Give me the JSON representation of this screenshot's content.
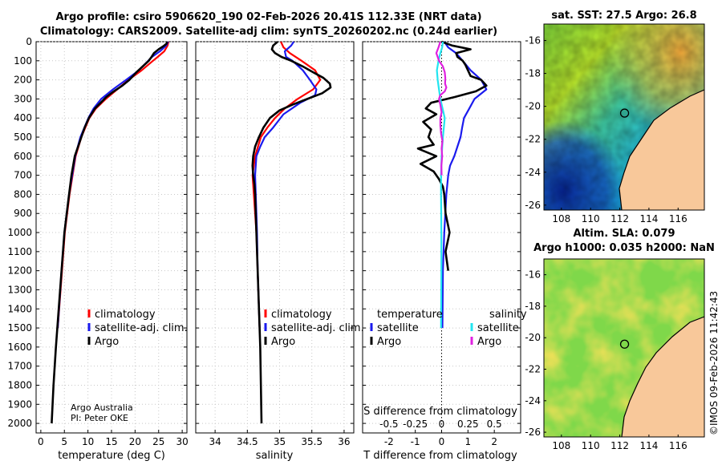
{
  "header": {
    "title_line1": "Argo profile: csiro 5906620_190 02-Feb-2026 20.41S 112.33E (NRT data)",
    "title_line2": "Climatology: CARS2009. Satellite-adj clim: synTS_20260202.nc (0.24d earlier)"
  },
  "credit": {
    "line1": "Argo Australia",
    "line2": "PI: Peter OKE"
  },
  "footer_stamp": "©IMOS 09-Feb-2026 11:42:43",
  "colors": {
    "red": "#ff0000",
    "blue": "#1a1aee",
    "black": "#000000",
    "cyan": "#22e5f0",
    "magenta": "#e020e0"
  },
  "map_sst": {
    "title": "sat. SST: 27.5 Argo: 26.8",
    "lat_ticks": [
      "-16",
      "-18",
      "-20",
      "-22",
      "-24",
      "-26"
    ],
    "lon_ticks": [
      "108",
      "110",
      "112",
      "114",
      "116"
    ],
    "lat_range": [
      -26.3,
      -15.0
    ],
    "lon_range": [
      106.8,
      117.8
    ],
    "float_position": {
      "lat": -20.41,
      "lon": 112.33
    }
  },
  "map_sla": {
    "title_line1": "Altim. SLA: 0.079",
    "title_line2": "Argo h1000: 0.035 h2000: NaN",
    "lat_ticks": [
      "-16",
      "-18",
      "-20",
      "-22",
      "-24",
      "-26"
    ],
    "lon_ticks": [
      "108",
      "110",
      "112",
      "114",
      "116"
    ],
    "lat_range": [
      -26.3,
      -15.0
    ],
    "lon_range": [
      106.8,
      117.8
    ],
    "float_position": {
      "lat": -20.41,
      "lon": 112.33
    }
  },
  "chart_data": [
    {
      "type": "line",
      "xlabel": "temperature (deg C)",
      "ylabel": "",
      "xlim": [
        -1,
        31
      ],
      "ylim": [
        2050,
        0
      ],
      "x_ticks": [
        "0",
        "5",
        "10",
        "15",
        "20",
        "25",
        "30"
      ],
      "y_ticks": [
        "0",
        "100",
        "200",
        "300",
        "400",
        "500",
        "600",
        "700",
        "800",
        "900",
        "1000",
        "1100",
        "1200",
        "1300",
        "1400",
        "1500",
        "1600",
        "1700",
        "1800",
        "1900",
        "2000"
      ],
      "legend": [
        "climatology",
        "satellite-adj. clim.",
        "Argo"
      ],
      "series": [
        {
          "name": "climatology",
          "color": "#ff0000",
          "depth": [
            0,
            20,
            50,
            80,
            100,
            150,
            200,
            250,
            300,
            350,
            400,
            500,
            600,
            800,
            1000,
            1200,
            1500
          ],
          "values": [
            27.1,
            26.9,
            26.2,
            24.8,
            23.8,
            21.4,
            18.6,
            16.2,
            13.8,
            11.7,
            10.3,
            8.6,
            7.4,
            6.1,
            5.1,
            4.5,
            3.6
          ]
        },
        {
          "name": "satellite-adj. clim.",
          "color": "#1a1aee",
          "depth": [
            0,
            20,
            50,
            80,
            100,
            150,
            200,
            250,
            300,
            350,
            400,
            500,
            600,
            800,
            1000,
            1200,
            1500
          ],
          "values": [
            27.0,
            26.6,
            25.3,
            23.6,
            22.8,
            20.8,
            18.1,
            15.3,
            12.8,
            11.2,
            10.1,
            8.4,
            7.3,
            6.0,
            5.0,
            4.4,
            3.6
          ]
        },
        {
          "name": "Argo",
          "color": "#000000",
          "depth": [
            0,
            10,
            20,
            40,
            60,
            80,
            100,
            130,
            160,
            200,
            230,
            260,
            290,
            320,
            350,
            400,
            450,
            500,
            600,
            700,
            800,
            1000,
            1200,
            1400,
            1600,
            1800,
            2000
          ],
          "values": [
            26.8,
            26.7,
            26.2,
            25.0,
            24.0,
            23.5,
            22.9,
            21.6,
            20.3,
            18.8,
            17.3,
            15.5,
            13.9,
            12.7,
            11.5,
            10.2,
            9.3,
            8.6,
            7.2,
            6.5,
            6.0,
            5.0,
            4.4,
            3.8,
            3.2,
            2.7,
            2.3
          ]
        }
      ]
    },
    {
      "type": "line",
      "xlabel": "salinity",
      "ylabel": "",
      "xlim": [
        33.7,
        36.15
      ],
      "ylim": [
        2050,
        0
      ],
      "x_ticks": [
        "34",
        "34.5",
        "35",
        "35.5",
        "36"
      ],
      "legend": [
        "climatology",
        "satellite-adj. clim.",
        "Argo"
      ],
      "series": [
        {
          "name": "climatology",
          "color": "#ff0000",
          "depth": [
            0,
            30,
            60,
            100,
            150,
            200,
            250,
            300,
            350,
            400,
            450,
            500,
            600,
            700,
            800,
            1000,
            1200,
            1500
          ],
          "values": [
            35.02,
            35.06,
            35.16,
            35.34,
            35.55,
            35.63,
            35.52,
            35.28,
            35.08,
            34.93,
            34.81,
            34.71,
            34.62,
            34.58,
            34.6,
            34.64,
            34.66,
            34.69
          ]
        },
        {
          "name": "satellite-adj. clim.",
          "color": "#1a1aee",
          "depth": [
            0,
            20,
            50,
            80,
            100,
            150,
            200,
            250,
            280,
            320,
            380,
            450,
            500,
            550,
            600,
            700,
            800,
            1000,
            1200,
            1500
          ],
          "values": [
            35.22,
            35.18,
            35.08,
            35.1,
            35.2,
            35.36,
            35.47,
            35.57,
            35.55,
            35.32,
            35.06,
            34.9,
            34.77,
            34.7,
            34.64,
            34.62,
            34.63,
            34.65,
            34.66,
            34.69
          ]
        },
        {
          "name": "Argo",
          "color": "#000000",
          "depth": [
            0,
            20,
            40,
            60,
            80,
            100,
            130,
            160,
            190,
            220,
            240,
            270,
            300,
            330,
            360,
            400,
            450,
            500,
            550,
            600,
            650,
            700,
            750,
            800,
            900,
            1000,
            1200,
            1400,
            1600,
            1800,
            2000
          ],
          "values": [
            34.97,
            34.9,
            34.88,
            34.93,
            35.03,
            35.18,
            35.36,
            35.52,
            35.68,
            35.78,
            35.79,
            35.66,
            35.43,
            35.2,
            35.0,
            34.85,
            34.75,
            34.68,
            34.62,
            34.59,
            34.58,
            34.59,
            34.61,
            34.62,
            34.63,
            34.64,
            34.66,
            34.68,
            34.7,
            34.71,
            34.72
          ]
        }
      ]
    },
    {
      "type": "line",
      "xlabel": "T difference from climatology",
      "secondary_xlabel": "S difference from climatology",
      "xlim": [
        -3.0,
        3.0
      ],
      "ylim": [
        2050,
        0
      ],
      "x_ticks": [
        "-2",
        "-1",
        "0",
        "1",
        "2"
      ],
      "secondary_x_ticks": [
        "-0.5",
        "-0.25",
        "0",
        "0.25",
        "0.5"
      ],
      "secondary_xlim": [
        -0.75,
        0.75
      ],
      "legend_temperature_title": "temperature",
      "legend_salinity_title": "salinity",
      "legend_temperature": [
        "satellite",
        "Argo"
      ],
      "legend_salinity": [
        "satellite",
        "Argo"
      ],
      "series": [
        {
          "name": "temperature satellite",
          "color": "#1a1aee",
          "depth": [
            0,
            30,
            60,
            100,
            150,
            200,
            250,
            300,
            350,
            400,
            450,
            500,
            550,
            600,
            650,
            700,
            800,
            1000,
            1200,
            1500
          ],
          "values": [
            0.1,
            0.25,
            0.55,
            0.8,
            1.1,
            1.5,
            1.7,
            1.25,
            1.05,
            0.85,
            0.78,
            0.72,
            0.6,
            0.48,
            0.32,
            0.25,
            0.18,
            0.1,
            0.05,
            0.03
          ]
        },
        {
          "name": "temperature Argo",
          "color": "#000000",
          "depth": [
            0,
            20,
            40,
            60,
            80,
            100,
            120,
            150,
            180,
            200,
            230,
            260,
            290,
            320,
            350,
            380,
            420,
            460,
            500,
            540,
            560,
            600,
            640,
            680,
            720,
            760,
            800,
            900,
            1000,
            1100,
            1200
          ],
          "values": [
            0.0,
            0.4,
            1.1,
            0.55,
            0.6,
            0.8,
            0.9,
            1.0,
            1.1,
            1.5,
            1.7,
            1.3,
            0.5,
            -0.4,
            -0.6,
            -0.2,
            -0.7,
            -0.4,
            -0.5,
            -0.3,
            -0.9,
            -0.2,
            -0.8,
            -0.3,
            -0.1,
            0.05,
            0.1,
            0.15,
            0.3,
            0.15,
            0.25
          ]
        },
        {
          "name": "salinity satellite",
          "color": "#22e5f0",
          "depth": [
            0,
            30,
            60,
            100,
            150,
            200,
            250,
            300,
            400,
            500,
            600,
            700,
            800,
            1000,
            1200,
            1500
          ],
          "values": [
            0.05,
            0.02,
            -0.05,
            -0.12,
            -0.18,
            -0.15,
            -0.1,
            -0.05,
            0.12,
            0.05,
            0.0,
            -0.02,
            -0.02,
            -0.01,
            -0.01,
            -0.02
          ]
        },
        {
          "name": "salinity Argo",
          "color": "#e020e0",
          "depth": [
            0,
            30,
            60,
            80,
            100,
            130,
            160,
            190,
            220,
            240,
            260,
            280,
            300,
            330,
            370,
            400,
            440,
            480,
            520,
            560,
            600,
            650,
            700
          ],
          "values": [
            -0.05,
            -0.12,
            -0.2,
            -0.15,
            -0.1,
            0.05,
            0.12,
            0.14,
            0.13,
            0.18,
            0.12,
            -0.05,
            -0.1,
            -0.05,
            0.0,
            -0.05,
            -0.05,
            -0.02,
            0.03,
            0.0,
            0.02,
            -0.01,
            0.0
          ]
        }
      ]
    }
  ]
}
